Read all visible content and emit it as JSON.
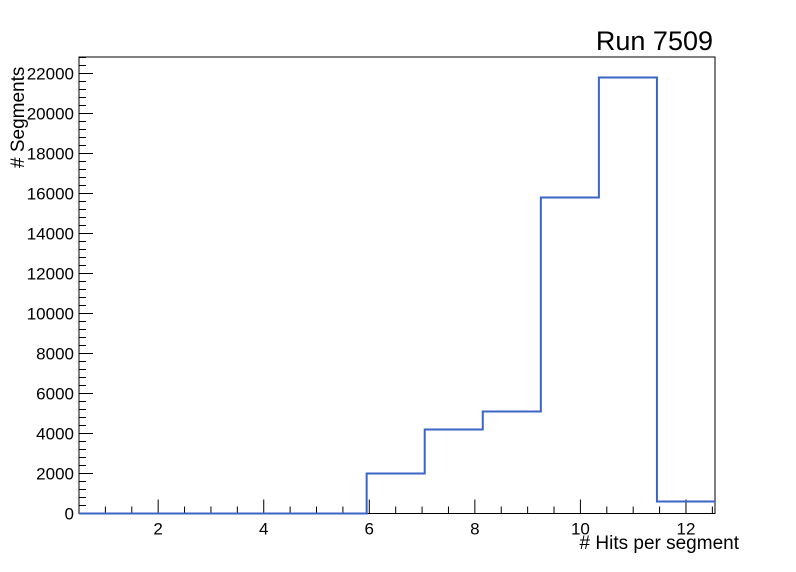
{
  "window": {
    "background_color": "#ffffff"
  },
  "chart_data": {
    "type": "histogram-step",
    "title": "Run 7509",
    "xlabel": "# Hits per segment",
    "ylabel": "# Segments",
    "xlim": [
      0.5,
      12.55
    ],
    "ylim": [
      0,
      22825
    ],
    "grid": false,
    "legend": false,
    "bin_width": 1.1,
    "bins": [
      {
        "x1": 0.5,
        "x2": 5.95,
        "count": 0
      },
      {
        "x1": 5.95,
        "x2": 7.05,
        "count": 2000
      },
      {
        "x1": 7.05,
        "x2": 8.15,
        "count": 4200
      },
      {
        "x1": 8.15,
        "x2": 9.25,
        "count": 5100
      },
      {
        "x1": 9.25,
        "x2": 10.35,
        "count": 15800
      },
      {
        "x1": 10.35,
        "x2": 11.45,
        "count": 21800
      },
      {
        "x1": 11.45,
        "x2": 12.55,
        "count": 600
      }
    ],
    "x_major_ticks": [
      2,
      4,
      6,
      8,
      10,
      12
    ],
    "x_minor_step": 0.5,
    "y_major_ticks": [
      0,
      2000,
      4000,
      6000,
      8000,
      10000,
      12000,
      14000,
      16000,
      18000,
      20000,
      22000
    ],
    "y_minor_step": 400,
    "colors": {
      "line": "#3b65c4",
      "axis": "#000000",
      "text": "#000000"
    },
    "line_width": 2,
    "tick_direction": "in"
  }
}
